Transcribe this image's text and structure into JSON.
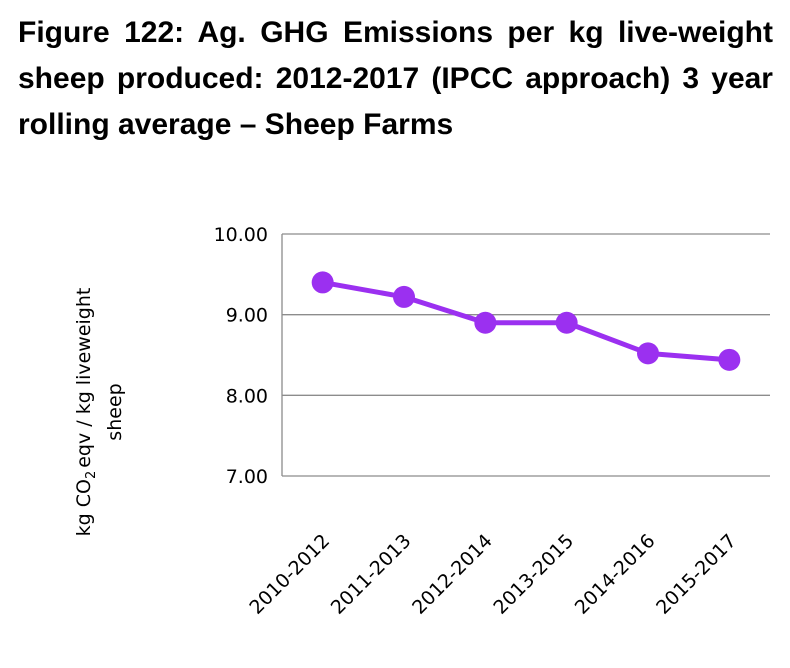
{
  "chart_data": {
    "type": "line",
    "title": "Figure 122: Ag. GHG Emissions per kg live-weight sheep produced: 2012-2017 (IPCC approach) 3 year rolling average – Sheep Farms",
    "categories": [
      "2010-2012",
      "2011-2013",
      "2012-2014",
      "2013-2015",
      "2014-2016",
      "2015-2017"
    ],
    "series": [
      {
        "name": "Sheep Farms",
        "values": [
          9.4,
          9.22,
          8.9,
          8.9,
          8.52,
          8.44
        ]
      }
    ],
    "xlabel": "",
    "ylabel_parts": {
      "pre": "kg CO",
      "sub": "2",
      "post": "eqv / kg liveweight",
      "line2": "sheep"
    },
    "ylim": [
      7.0,
      10.0
    ],
    "yticks": [
      "7.00",
      "8.00",
      "9.00",
      "10.00"
    ],
    "grid": true,
    "legend": "none",
    "color": "#9B30F0"
  }
}
